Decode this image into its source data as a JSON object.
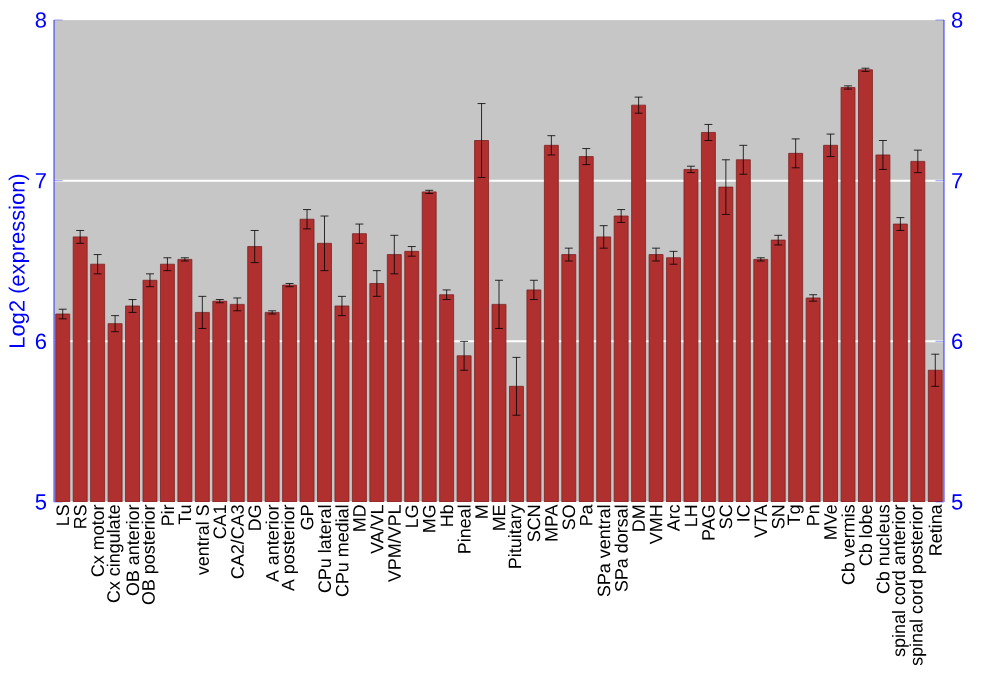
{
  "chart_data": {
    "type": "bar",
    "ylabel": "Log2 (expression)",
    "categories": [
      "LS",
      "RS",
      "Cx motor",
      "Cx cingulate",
      "OB anterior",
      "OB posterior",
      "Pir",
      "Tu",
      "ventral S",
      "CA1",
      "CA2/CA3",
      "DG",
      "A anterior",
      "A posterior",
      "GP",
      "CPu lateral",
      "CPu medial",
      "MD",
      "VA/VL",
      "VPM/VPL",
      "LG",
      "MG",
      "Hb",
      "Pineal",
      "M",
      "ME",
      "Pituitary",
      "SCN",
      "MPA",
      "SO",
      "Pa",
      "SPa ventral",
      "SPa dorsal",
      "DM",
      "VMH",
      "Arc",
      "LH",
      "PAG",
      "SC",
      "IC",
      "VTA",
      "SN",
      "Tg",
      "Pn",
      "MVe",
      "Cb vermis",
      "Cb lobe",
      "Cb nucleus",
      "spinal cord anterior",
      "spinal cord posterior",
      "Retina"
    ],
    "values": [
      6.17,
      6.65,
      6.48,
      6.11,
      6.22,
      6.38,
      6.48,
      6.51,
      6.18,
      6.25,
      6.23,
      6.59,
      6.18,
      6.35,
      6.76,
      6.61,
      6.22,
      6.67,
      6.36,
      6.54,
      6.56,
      6.93,
      6.29,
      5.91,
      7.25,
      6.23,
      5.72,
      6.32,
      7.22,
      6.54,
      7.15,
      6.65,
      6.78,
      7.47,
      6.54,
      6.52,
      7.07,
      7.3,
      6.96,
      7.13,
      6.51,
      6.63,
      7.17,
      6.27,
      7.22,
      7.58,
      7.69,
      7.16,
      6.73,
      7.12,
      5.82
    ],
    "errors": [
      0.03,
      0.04,
      0.06,
      0.05,
      0.04,
      0.04,
      0.04,
      0.01,
      0.1,
      0.01,
      0.04,
      0.1,
      0.01,
      0.01,
      0.06,
      0.17,
      0.06,
      0.06,
      0.08,
      0.12,
      0.03,
      0.01,
      0.03,
      0.09,
      0.23,
      0.15,
      0.18,
      0.06,
      0.06,
      0.04,
      0.05,
      0.07,
      0.04,
      0.05,
      0.04,
      0.04,
      0.02,
      0.05,
      0.17,
      0.09,
      0.01,
      0.03,
      0.09,
      0.02,
      0.07,
      0.01,
      0.01,
      0.09,
      0.04,
      0.07,
      0.1
    ],
    "color": "#b03030",
    "ylim": [
      5,
      8
    ],
    "yticks": [
      5,
      6,
      7,
      8
    ],
    "y2lim": [
      5,
      8
    ],
    "y2ticks": [
      5,
      6,
      7,
      8
    ],
    "grid": "y"
  }
}
